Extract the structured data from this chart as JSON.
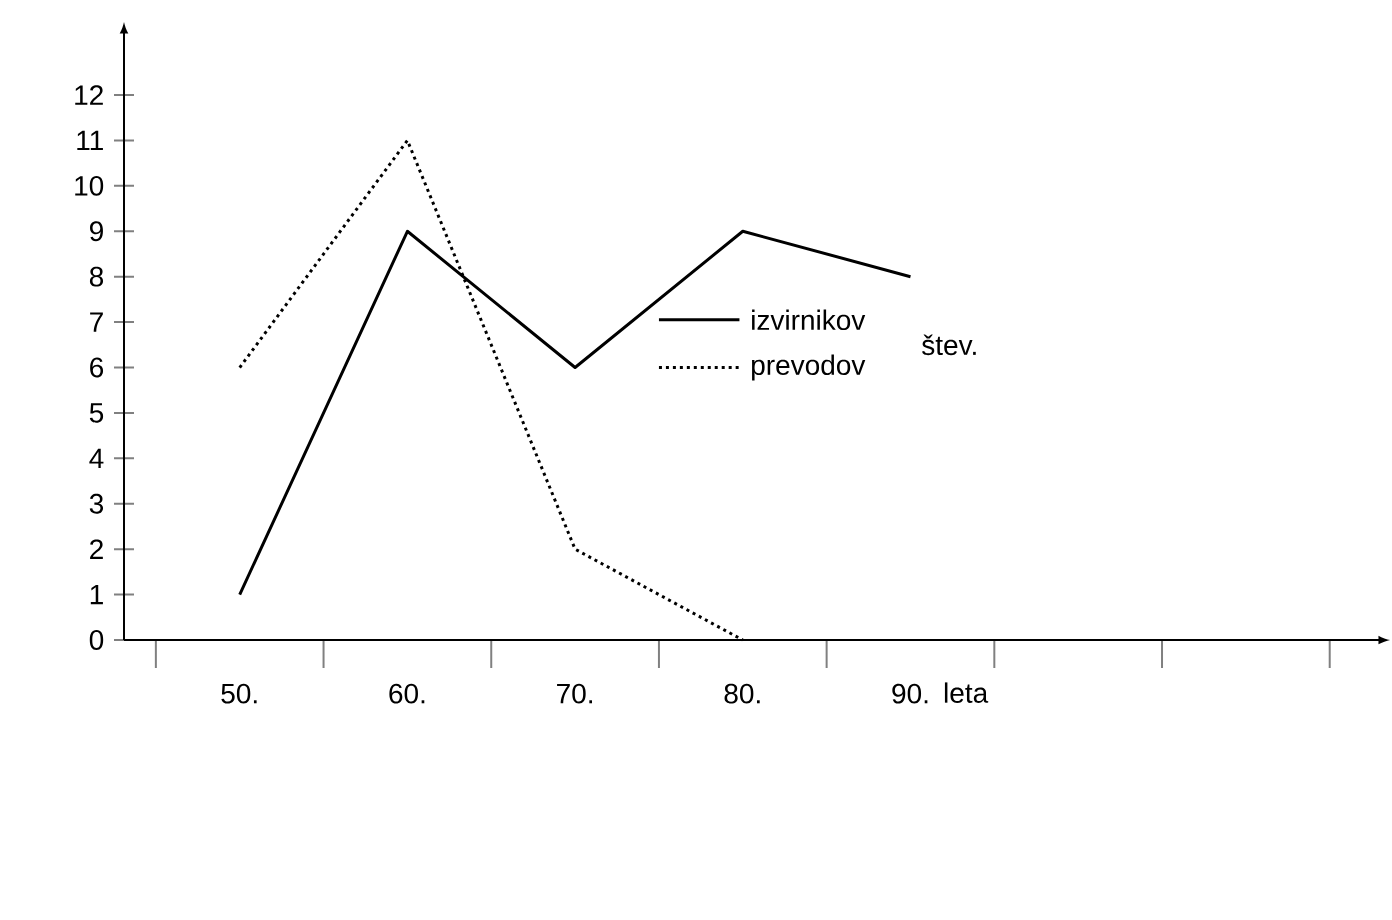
{
  "chart_data": {
    "type": "line",
    "categories": [
      "50.",
      "60.",
      "70.",
      "80.",
      "90."
    ],
    "xlabel": "leta",
    "legend_title": "štev.",
    "ylim": [
      0,
      13.3
    ],
    "yticks": [
      0,
      1,
      2,
      3,
      4,
      5,
      6,
      7,
      8,
      9,
      10,
      11,
      12
    ],
    "grid": false,
    "legend": "center",
    "marker": "none",
    "series": [
      {
        "name": "izvirnikov",
        "color": "#000000",
        "line_style": "solid",
        "values": [
          1,
          9,
          6,
          9,
          8
        ]
      },
      {
        "name": "prevodov",
        "color": "#000000",
        "line_style": "dotted",
        "values": [
          6,
          11,
          2,
          0,
          null
        ]
      }
    ]
  }
}
